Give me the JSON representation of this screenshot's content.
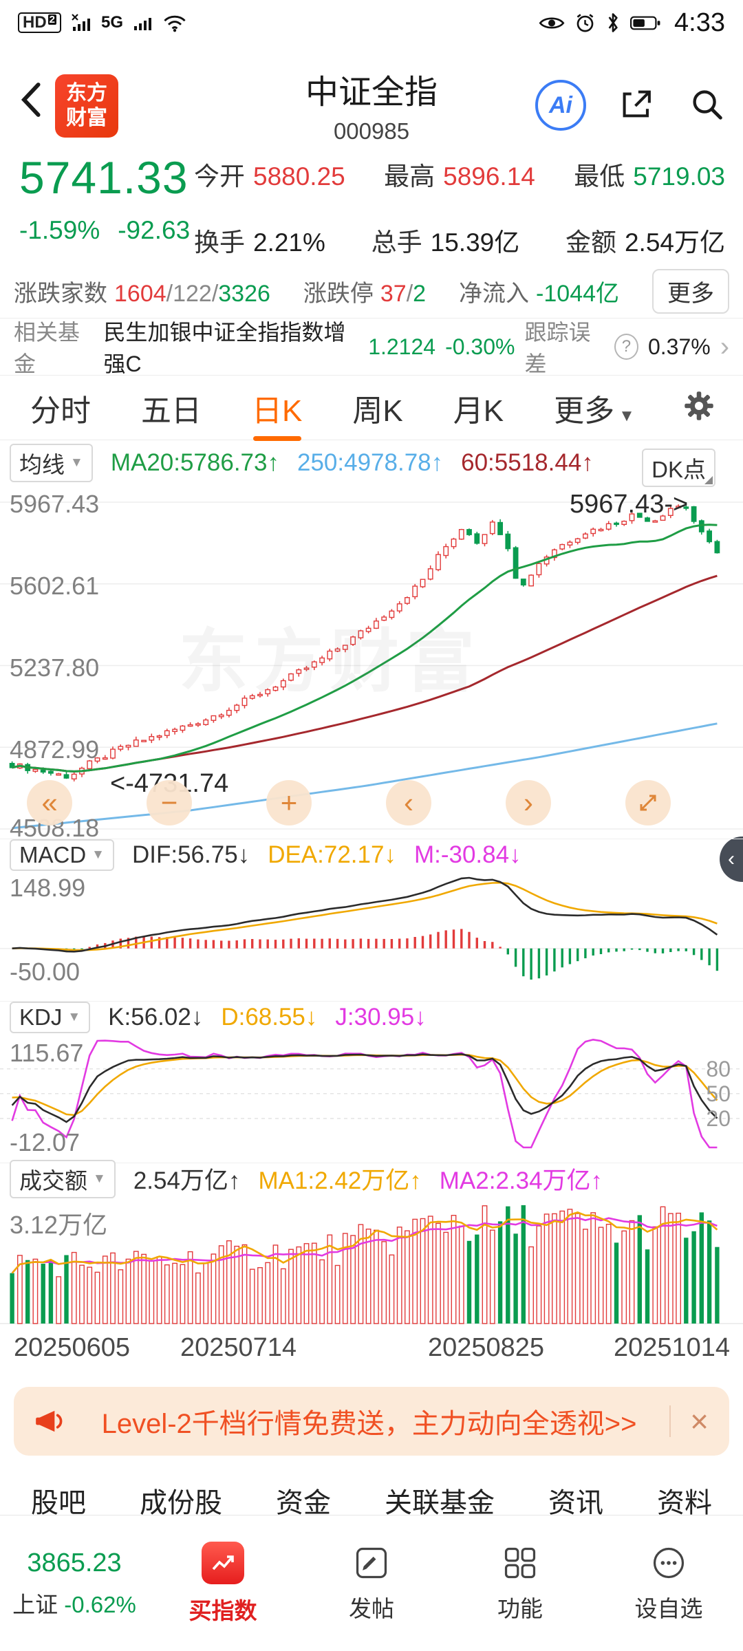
{
  "status_bar": {
    "hd": "HD",
    "hd_sub": "2",
    "network": "5G",
    "time": "4:33"
  },
  "header": {
    "logo_line1": "东方",
    "logo_line2": "财富",
    "title": "中证全指",
    "code": "000985",
    "ai_label": "Ai"
  },
  "quote": {
    "price": "5741.33",
    "change_pct": "-1.59%",
    "change_val": "-92.63",
    "open_label": "今开",
    "open": "5880.25",
    "high_label": "最高",
    "high": "5896.14",
    "low_label": "最低",
    "low": "5719.03",
    "turnover_label": "换手",
    "turnover": "2.21%",
    "volume_label": "总手",
    "volume": "15.39亿",
    "amount_label": "金额",
    "amount": "2.54万亿",
    "breadth_label": "涨跌家数",
    "breadth_up": "1604",
    "breadth_flat": "/122/",
    "breadth_down": "3326",
    "limit_label": "涨跌停",
    "limit_up": "37",
    "limit_sep": "/",
    "limit_down": "2",
    "inflow_label": "净流入",
    "inflow_value": "-1044亿",
    "more_label": "更多"
  },
  "fund": {
    "label": "相关基金",
    "name": "民生加银中证全指指数增强C",
    "nav": "1.2124",
    "pct": "-0.30%",
    "te_label": "跟踪误差",
    "help": "?",
    "te_value": "0.37%",
    "chevron": "›"
  },
  "tabs": [
    {
      "label": "分时"
    },
    {
      "label": "五日"
    },
    {
      "label": "日K"
    },
    {
      "label": "周K"
    },
    {
      "label": "月K"
    },
    {
      "label": "更多"
    }
  ],
  "kline_header": {
    "ind": "均线",
    "ma20": "MA20:5786.73↑",
    "ma250": "250:4978.78↑",
    "ma60": "60:5518.44↑",
    "dk": "DK点"
  },
  "kline": {
    "y_labels": [
      "5967.43",
      "5602.61",
      "5237.80",
      "4872.99",
      "4508.18"
    ],
    "annotation_high": "5967.43->",
    "annotation_low": "<-4731.74",
    "watermark": "东方财富"
  },
  "controls": {
    "fast_back": "«",
    "zoom_out": "−",
    "zoom_in": "+",
    "prev": "‹",
    "next": "›",
    "handle": "‹"
  },
  "macd": {
    "ind": "MACD",
    "dif": "DIF:56.75↓",
    "dea": "DEA:72.17↓",
    "m": "M:-30.84↓",
    "y_top": "148.99",
    "y_bottom": "-50.00"
  },
  "kdj": {
    "ind": "KDJ",
    "k": "K:56.02↓",
    "d": "D:68.55↓",
    "j": "J:30.95↓",
    "y_top": "115.67",
    "y_bottom": "-12.07",
    "grid_labels": [
      "80",
      "50",
      "20"
    ]
  },
  "volume": {
    "ind": "成交额",
    "cur": "2.54万亿↑",
    "ma1": "MA1:2.42万亿↑",
    "ma2": "MA2:2.34万亿↑",
    "y_top": "3.12万亿"
  },
  "x_axis": [
    "20250605",
    "20250714",
    "20250825",
    "20251014"
  ],
  "banner": {
    "text": "Level-2千档行情免费送，主力动向全透视>>",
    "close": "×"
  },
  "sub_tabs": [
    "股吧",
    "成份股",
    "资金",
    "关联基金",
    "资讯",
    "资料"
  ],
  "bottom_nav": {
    "index_value": "3865.23",
    "index_name": "上证",
    "index_pct": "-0.62%",
    "buy": "买指数",
    "post": "发帖",
    "func": "功能",
    "watch": "设自选"
  },
  "chart_data": {
    "type": "candlestick+indicators",
    "title": "中证全指 000985 日K",
    "n": 92,
    "last_close": 5741.33,
    "y_max": 5967.43,
    "y_min": 4508.18,
    "grid_prices": [
      5967.43,
      5602.61,
      5237.8,
      4872.99,
      4508.18
    ],
    "peak_index": 87,
    "peak_high": 5967.43,
    "trough_index": 7,
    "trough_low": 4731.74,
    "noise": 26,
    "price_anchors": [
      [
        0,
        4795
      ],
      [
        0.04,
        4768
      ],
      [
        0.08,
        4742
      ],
      [
        0.11,
        4800
      ],
      [
        0.16,
        4878
      ],
      [
        0.22,
        4940
      ],
      [
        0.28,
        5005
      ],
      [
        0.33,
        5080
      ],
      [
        0.38,
        5160
      ],
      [
        0.43,
        5250
      ],
      [
        0.47,
        5330
      ],
      [
        0.51,
        5420
      ],
      [
        0.55,
        5520
      ],
      [
        0.58,
        5610
      ],
      [
        0.61,
        5750
      ],
      [
        0.64,
        5860
      ],
      [
        0.66,
        5790
      ],
      [
        0.68,
        5875
      ],
      [
        0.7,
        5810
      ],
      [
        0.72,
        5570
      ],
      [
        0.745,
        5690
      ],
      [
        0.77,
        5760
      ],
      [
        0.81,
        5830
      ],
      [
        0.85,
        5870
      ],
      [
        0.88,
        5910
      ],
      [
        0.91,
        5885
      ],
      [
        0.935,
        5945
      ],
      [
        0.955,
        5955
      ],
      [
        0.975,
        5835
      ],
      [
        1,
        5741.33
      ]
    ],
    "ma250_anchors": [
      [
        0,
        4512
      ],
      [
        0.25,
        4590
      ],
      [
        0.5,
        4700
      ],
      [
        0.75,
        4830
      ],
      [
        1,
        4978.78
      ]
    ],
    "vol_anchors": [
      [
        0,
        1.75
      ],
      [
        0.15,
        1.7
      ],
      [
        0.3,
        1.9
      ],
      [
        0.45,
        2.1
      ],
      [
        0.55,
        2.5
      ],
      [
        0.62,
        3.0
      ],
      [
        0.68,
        2.7
      ],
      [
        0.75,
        2.9
      ],
      [
        0.85,
        2.6
      ],
      [
        0.93,
        2.8
      ],
      [
        1,
        2.54
      ]
    ],
    "vol_max": 3.45,
    "kdj_range": [
      -15,
      118
    ],
    "kdj_grid": [
      80,
      50,
      20
    ],
    "x_tick_labels": [
      "20250605",
      "20250714",
      "20250825",
      "20251014"
    ],
    "colors": {
      "up": "#e23b3b",
      "down": "#0a9c50",
      "ma20": "#1f9d45",
      "ma60": "#a5282d",
      "ma250": "#74b9e8",
      "dif": "#2b2b2b",
      "dea": "#f0a800",
      "magenta": "#e23ae2"
    }
  }
}
